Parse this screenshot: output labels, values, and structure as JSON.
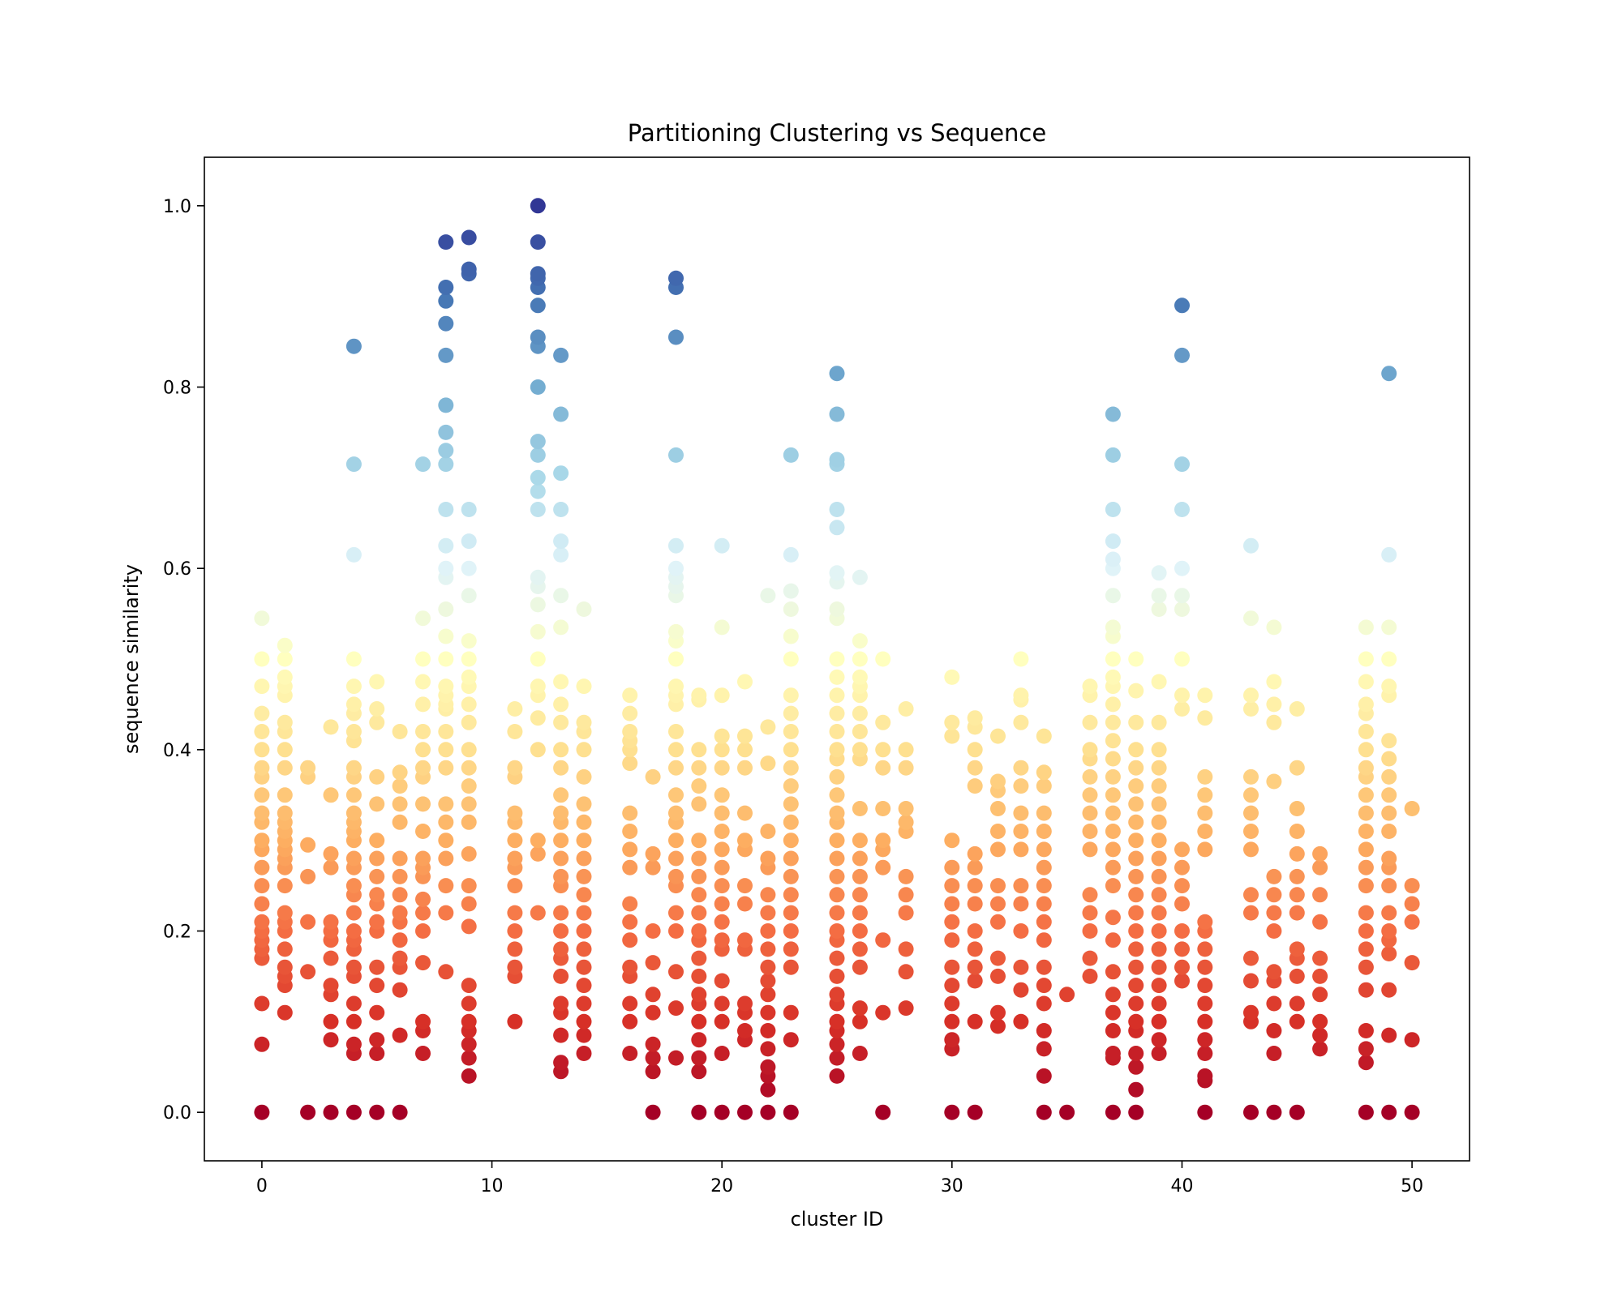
{
  "chart_data": {
    "type": "scatter",
    "title": "Partitioning Clustering vs Sequence",
    "xlabel": "cluster ID",
    "ylabel": "sequence similarity",
    "xlim": [
      -2.5,
      52.5
    ],
    "ylim": [
      -0.0535,
      1.0535
    ],
    "xticks": [
      0,
      10,
      20,
      30,
      40,
      50
    ],
    "yticks": [
      0.0,
      0.2,
      0.4,
      0.6,
      0.8,
      1.0
    ],
    "xtick_labels": [
      "0",
      "10",
      "20",
      "30",
      "40",
      "50"
    ],
    "ytick_labels": [
      "0.0",
      "0.2",
      "0.4",
      "0.6",
      "0.8",
      "1.0"
    ],
    "grid": false,
    "colormap": "RdYlBu",
    "color_encodes": "sequence similarity",
    "clusters": [
      {
        "id": 0,
        "values": [
          0,
          0.075,
          0.12,
          0.17,
          0.18,
          0.19,
          0.2,
          0.21,
          0.23,
          0.25,
          0.27,
          0.29,
          0.3,
          0.32,
          0.33,
          0.35,
          0.37,
          0.38,
          0.4,
          0.42,
          0.44,
          0.47,
          0.5,
          0.545
        ]
      },
      {
        "id": 1,
        "values": [
          0.11,
          0.14,
          0.15,
          0.16,
          0.18,
          0.2,
          0.21,
          0.22,
          0.25,
          0.27,
          0.28,
          0.29,
          0.3,
          0.31,
          0.32,
          0.33,
          0.35,
          0.38,
          0.4,
          0.42,
          0.43,
          0.46,
          0.47,
          0.48,
          0.5,
          0.515
        ]
      },
      {
        "id": 2,
        "values": [
          0,
          0.155,
          0.21,
          0.26,
          0.295,
          0.37,
          0.38
        ]
      },
      {
        "id": 3,
        "values": [
          0,
          0.08,
          0.1,
          0.13,
          0.14,
          0.17,
          0.19,
          0.2,
          0.21,
          0.27,
          0.285,
          0.35,
          0.425
        ]
      },
      {
        "id": 4,
        "values": [
          0,
          0.065,
          0.075,
          0.1,
          0.12,
          0.15,
          0.16,
          0.18,
          0.19,
          0.2,
          0.22,
          0.24,
          0.25,
          0.27,
          0.28,
          0.3,
          0.31,
          0.32,
          0.33,
          0.35,
          0.37,
          0.38,
          0.41,
          0.42,
          0.44,
          0.45,
          0.47,
          0.5,
          0.615,
          0.715,
          0.845
        ]
      },
      {
        "id": 5,
        "values": [
          0,
          0.065,
          0.08,
          0.11,
          0.14,
          0.16,
          0.2,
          0.21,
          0.23,
          0.24,
          0.26,
          0.28,
          0.3,
          0.34,
          0.37,
          0.43,
          0.445,
          0.475
        ]
      },
      {
        "id": 6,
        "values": [
          0,
          0.085,
          0.135,
          0.16,
          0.17,
          0.19,
          0.21,
          0.22,
          0.24,
          0.26,
          0.28,
          0.32,
          0.34,
          0.36,
          0.375,
          0.42
        ]
      },
      {
        "id": 7,
        "values": [
          0.065,
          0.09,
          0.1,
          0.165,
          0.2,
          0.22,
          0.235,
          0.26,
          0.27,
          0.28,
          0.31,
          0.34,
          0.37,
          0.38,
          0.4,
          0.42,
          0.45,
          0.475,
          0.5,
          0.545,
          0.715
        ]
      },
      {
        "id": 8,
        "values": [
          0.155,
          0.22,
          0.25,
          0.28,
          0.3,
          0.32,
          0.34,
          0.38,
          0.4,
          0.42,
          0.445,
          0.45,
          0.46,
          0.47,
          0.5,
          0.525,
          0.555,
          0.59,
          0.6,
          0.625,
          0.665,
          0.715,
          0.73,
          0.75,
          0.78,
          0.835,
          0.87,
          0.895,
          0.91,
          0.96
        ]
      },
      {
        "id": 9,
        "values": [
          0.04,
          0.06,
          0.075,
          0.09,
          0.1,
          0.12,
          0.14,
          0.205,
          0.23,
          0.25,
          0.285,
          0.32,
          0.34,
          0.36,
          0.38,
          0.4,
          0.43,
          0.45,
          0.47,
          0.48,
          0.5,
          0.52,
          0.57,
          0.6,
          0.63,
          0.665,
          0.925,
          0.93,
          0.965
        ]
      },
      {
        "id": 11,
        "values": [
          0.1,
          0.15,
          0.16,
          0.18,
          0.2,
          0.22,
          0.25,
          0.27,
          0.28,
          0.3,
          0.32,
          0.33,
          0.37,
          0.38,
          0.42,
          0.445
        ]
      },
      {
        "id": 12,
        "values": [
          0.22,
          0.285,
          0.3,
          0.4,
          0.435,
          0.46,
          0.47,
          0.5,
          0.53,
          0.56,
          0.58,
          0.59,
          0.665,
          0.685,
          0.7,
          0.725,
          0.74,
          0.8,
          0.845,
          0.855,
          0.89,
          0.91,
          0.92,
          0.925,
          0.96,
          1.0
        ]
      },
      {
        "id": 13,
        "values": [
          0.045,
          0.055,
          0.085,
          0.11,
          0.12,
          0.15,
          0.17,
          0.18,
          0.2,
          0.22,
          0.25,
          0.26,
          0.28,
          0.3,
          0.32,
          0.33,
          0.35,
          0.38,
          0.4,
          0.43,
          0.45,
          0.475,
          0.535,
          0.57,
          0.615,
          0.63,
          0.665,
          0.705,
          0.77,
          0.835
        ]
      },
      {
        "id": 14,
        "values": [
          0.065,
          0.085,
          0.1,
          0.12,
          0.14,
          0.16,
          0.18,
          0.2,
          0.22,
          0.24,
          0.26,
          0.28,
          0.3,
          0.32,
          0.34,
          0.37,
          0.4,
          0.42,
          0.43,
          0.47,
          0.555
        ]
      },
      {
        "id": 16,
        "values": [
          0.065,
          0.1,
          0.12,
          0.15,
          0.16,
          0.19,
          0.21,
          0.23,
          0.27,
          0.29,
          0.31,
          0.33,
          0.385,
          0.4,
          0.41,
          0.42,
          0.44,
          0.46
        ]
      },
      {
        "id": 17,
        "values": [
          0,
          0.045,
          0.06,
          0.075,
          0.11,
          0.13,
          0.165,
          0.2,
          0.27,
          0.285,
          0.37
        ]
      },
      {
        "id": 18,
        "values": [
          0.06,
          0.115,
          0.155,
          0.2,
          0.22,
          0.25,
          0.26,
          0.28,
          0.3,
          0.32,
          0.33,
          0.35,
          0.38,
          0.4,
          0.42,
          0.45,
          0.46,
          0.47,
          0.5,
          0.52,
          0.53,
          0.57,
          0.58,
          0.59,
          0.6,
          0.625,
          0.725,
          0.855,
          0.91,
          0.92
        ]
      },
      {
        "id": 19,
        "values": [
          0,
          0.045,
          0.06,
          0.08,
          0.1,
          0.12,
          0.13,
          0.15,
          0.17,
          0.19,
          0.2,
          0.22,
          0.24,
          0.26,
          0.28,
          0.3,
          0.34,
          0.36,
          0.38,
          0.4,
          0.455,
          0.46
        ]
      },
      {
        "id": 20,
        "values": [
          0,
          0.065,
          0.1,
          0.12,
          0.145,
          0.18,
          0.19,
          0.21,
          0.23,
          0.25,
          0.27,
          0.29,
          0.31,
          0.33,
          0.35,
          0.38,
          0.4,
          0.415,
          0.46,
          0.535,
          0.625
        ]
      },
      {
        "id": 21,
        "values": [
          0,
          0.08,
          0.09,
          0.11,
          0.12,
          0.18,
          0.19,
          0.23,
          0.25,
          0.29,
          0.3,
          0.33,
          0.38,
          0.4,
          0.415,
          0.475
        ]
      },
      {
        "id": 22,
        "values": [
          0,
          0.025,
          0.04,
          0.05,
          0.07,
          0.09,
          0.11,
          0.13,
          0.145,
          0.16,
          0.18,
          0.2,
          0.22,
          0.24,
          0.27,
          0.28,
          0.31,
          0.385,
          0.425,
          0.57
        ]
      },
      {
        "id": 23,
        "values": [
          0,
          0.08,
          0.11,
          0.16,
          0.18,
          0.2,
          0.22,
          0.24,
          0.26,
          0.28,
          0.3,
          0.32,
          0.34,
          0.36,
          0.38,
          0.4,
          0.42,
          0.44,
          0.46,
          0.5,
          0.525,
          0.555,
          0.575,
          0.615,
          0.725
        ]
      },
      {
        "id": 25,
        "values": [
          0.04,
          0.06,
          0.075,
          0.09,
          0.1,
          0.12,
          0.13,
          0.15,
          0.17,
          0.19,
          0.2,
          0.22,
          0.24,
          0.26,
          0.28,
          0.3,
          0.32,
          0.33,
          0.35,
          0.37,
          0.39,
          0.4,
          0.42,
          0.44,
          0.46,
          0.48,
          0.5,
          0.545,
          0.555,
          0.585,
          0.595,
          0.645,
          0.665,
          0.715,
          0.72,
          0.77,
          0.815
        ]
      },
      {
        "id": 26,
        "values": [
          0.065,
          0.1,
          0.115,
          0.16,
          0.18,
          0.2,
          0.22,
          0.24,
          0.26,
          0.28,
          0.3,
          0.335,
          0.39,
          0.4,
          0.42,
          0.44,
          0.46,
          0.47,
          0.48,
          0.5,
          0.52,
          0.59
        ]
      },
      {
        "id": 27,
        "values": [
          0,
          0.11,
          0.19,
          0.27,
          0.29,
          0.3,
          0.335,
          0.38,
          0.4,
          0.43,
          0.5
        ]
      },
      {
        "id": 28,
        "values": [
          0.115,
          0.155,
          0.18,
          0.22,
          0.24,
          0.26,
          0.31,
          0.32,
          0.335,
          0.38,
          0.4,
          0.445
        ]
      },
      {
        "id": 30,
        "values": [
          0,
          0.07,
          0.08,
          0.1,
          0.12,
          0.14,
          0.16,
          0.19,
          0.21,
          0.23,
          0.25,
          0.27,
          0.3,
          0.415,
          0.43,
          0.48
        ]
      },
      {
        "id": 31,
        "values": [
          0,
          0.1,
          0.145,
          0.16,
          0.18,
          0.2,
          0.23,
          0.25,
          0.27,
          0.285,
          0.36,
          0.38,
          0.4,
          0.425,
          0.435
        ]
      },
      {
        "id": 32,
        "values": [
          0.095,
          0.11,
          0.15,
          0.17,
          0.21,
          0.23,
          0.25,
          0.29,
          0.31,
          0.335,
          0.355,
          0.365,
          0.415
        ]
      },
      {
        "id": 33,
        "values": [
          0.1,
          0.135,
          0.16,
          0.2,
          0.23,
          0.25,
          0.29,
          0.31,
          0.33,
          0.36,
          0.38,
          0.43,
          0.455,
          0.46,
          0.5
        ]
      },
      {
        "id": 34,
        "values": [
          0,
          0.04,
          0.07,
          0.09,
          0.12,
          0.14,
          0.16,
          0.19,
          0.21,
          0.23,
          0.25,
          0.27,
          0.29,
          0.31,
          0.33,
          0.36,
          0.375,
          0.415
        ]
      },
      {
        "id": 35,
        "values": [
          0,
          0.13
        ]
      },
      {
        "id": 36,
        "values": [
          0.15,
          0.17,
          0.2,
          0.22,
          0.24,
          0.29,
          0.31,
          0.33,
          0.35,
          0.37,
          0.39,
          0.4,
          0.43,
          0.46,
          0.47
        ]
      },
      {
        "id": 37,
        "values": [
          0,
          0.06,
          0.065,
          0.09,
          0.11,
          0.13,
          0.155,
          0.19,
          0.215,
          0.25,
          0.27,
          0.29,
          0.31,
          0.33,
          0.35,
          0.37,
          0.39,
          0.41,
          0.43,
          0.45,
          0.47,
          0.48,
          0.5,
          0.525,
          0.535,
          0.57,
          0.6,
          0.61,
          0.63,
          0.665,
          0.725,
          0.77
        ]
      },
      {
        "id": 38,
        "values": [
          0,
          0.025,
          0.05,
          0.065,
          0.09,
          0.1,
          0.12,
          0.14,
          0.16,
          0.18,
          0.2,
          0.22,
          0.24,
          0.26,
          0.28,
          0.3,
          0.32,
          0.34,
          0.36,
          0.38,
          0.4,
          0.43,
          0.465,
          0.5
        ]
      },
      {
        "id": 39,
        "values": [
          0.065,
          0.08,
          0.1,
          0.12,
          0.14,
          0.16,
          0.18,
          0.2,
          0.22,
          0.24,
          0.26,
          0.28,
          0.3,
          0.32,
          0.34,
          0.36,
          0.38,
          0.4,
          0.43,
          0.475,
          0.555,
          0.57,
          0.595
        ]
      },
      {
        "id": 40,
        "values": [
          0.145,
          0.16,
          0.18,
          0.2,
          0.23,
          0.25,
          0.27,
          0.29,
          0.445,
          0.46,
          0.5,
          0.555,
          0.57,
          0.6,
          0.665,
          0.715,
          0.835,
          0.89
        ]
      },
      {
        "id": 41,
        "values": [
          0,
          0.035,
          0.04,
          0.065,
          0.08,
          0.1,
          0.12,
          0.14,
          0.16,
          0.18,
          0.2,
          0.21,
          0.29,
          0.31,
          0.33,
          0.35,
          0.37,
          0.435,
          0.46
        ]
      },
      {
        "id": 43,
        "values": [
          0,
          0.1,
          0.11,
          0.145,
          0.17,
          0.22,
          0.24,
          0.29,
          0.31,
          0.33,
          0.35,
          0.37,
          0.445,
          0.46,
          0.545,
          0.625
        ]
      },
      {
        "id": 44,
        "values": [
          0,
          0.065,
          0.09,
          0.12,
          0.145,
          0.155,
          0.2,
          0.22,
          0.24,
          0.26,
          0.365,
          0.43,
          0.45,
          0.475,
          0.535
        ]
      },
      {
        "id": 45,
        "values": [
          0,
          0.1,
          0.12,
          0.15,
          0.17,
          0.18,
          0.22,
          0.24,
          0.26,
          0.285,
          0.31,
          0.335,
          0.38,
          0.445
        ]
      },
      {
        "id": 46,
        "values": [
          0.07,
          0.085,
          0.1,
          0.13,
          0.15,
          0.17,
          0.21,
          0.24,
          0.27,
          0.285
        ]
      },
      {
        "id": 48,
        "values": [
          0,
          0.055,
          0.07,
          0.09,
          0.135,
          0.16,
          0.18,
          0.2,
          0.22,
          0.25,
          0.27,
          0.29,
          0.31,
          0.33,
          0.35,
          0.37,
          0.38,
          0.4,
          0.42,
          0.44,
          0.45,
          0.475,
          0.5,
          0.535
        ]
      },
      {
        "id": 49,
        "values": [
          0,
          0.085,
          0.135,
          0.175,
          0.19,
          0.2,
          0.22,
          0.25,
          0.27,
          0.28,
          0.31,
          0.33,
          0.35,
          0.37,
          0.39,
          0.41,
          0.46,
          0.47,
          0.5,
          0.535,
          0.615,
          0.815
        ]
      },
      {
        "id": 50,
        "values": [
          0,
          0.08,
          0.165,
          0.21,
          0.23,
          0.25,
          0.335
        ]
      }
    ]
  }
}
